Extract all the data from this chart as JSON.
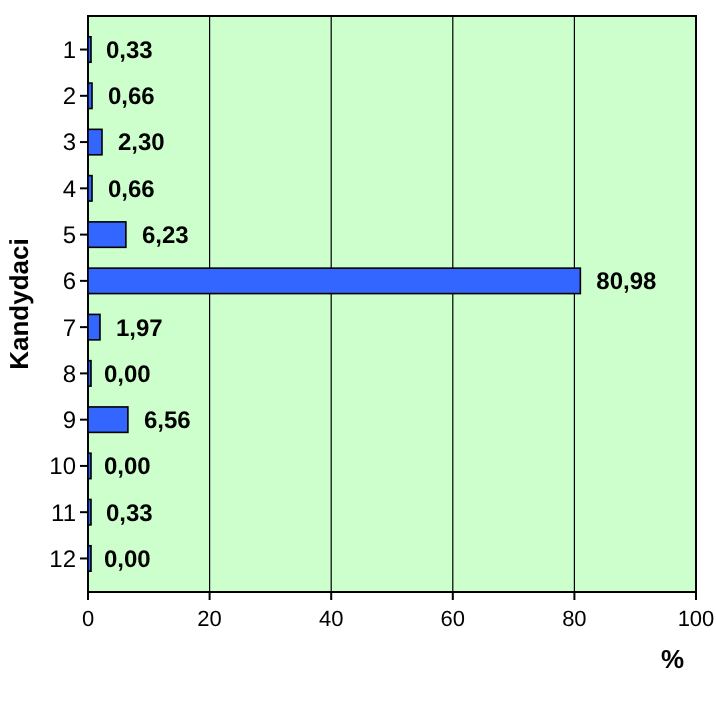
{
  "chart_data": {
    "type": "bar",
    "orientation": "horizontal",
    "ylabel": "Kandydaci",
    "xlabel": "%",
    "categories": [
      "1",
      "2",
      "3",
      "4",
      "5",
      "6",
      "7",
      "8",
      "9",
      "10",
      "11",
      "12"
    ],
    "values": [
      0.33,
      0.66,
      2.3,
      0.66,
      6.23,
      80.98,
      1.97,
      0.0,
      6.56,
      0.0,
      0.33,
      0.0
    ],
    "value_labels": [
      "0,33",
      "0,66",
      "2,30",
      "0,66",
      "6,23",
      "80,98",
      "1,97",
      "0,00",
      "6,56",
      "0,00",
      "0,33",
      "0,00"
    ],
    "color": "#3366ff",
    "xlim": [
      0,
      100
    ],
    "xticks": [
      0,
      20,
      40,
      60,
      80,
      100
    ],
    "grid": "x"
  }
}
